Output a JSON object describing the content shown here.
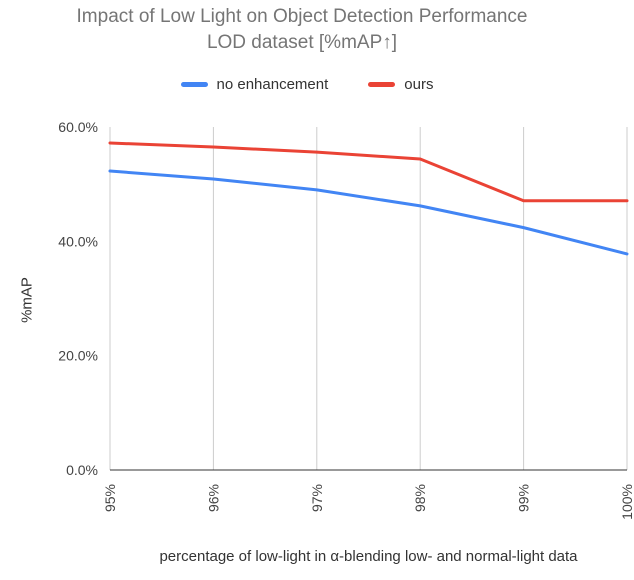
{
  "header": {
    "title_line1": "Impact of Low Light on Object Detection Performance",
    "title_line2": "LOD dataset [%mAP↑]"
  },
  "chart_data": {
    "type": "line",
    "title": "Impact of Low Light on Object Detection Performance LOD dataset [%mAP↑]",
    "xlabel": "percentage of low-light in α-blending low- and normal-light data",
    "ylabel": "%mAP",
    "x": [
      95,
      96,
      97,
      98,
      99,
      100
    ],
    "x_tick_labels": [
      "95%",
      "96%",
      "97%",
      "98%",
      "99%",
      "100%"
    ],
    "series": [
      {
        "name": "no enhancement",
        "color": "#4285f4",
        "values": [
          52.3,
          50.9,
          49.0,
          46.2,
          42.4,
          37.8
        ]
      },
      {
        "name": "ours",
        "color": "#ea4335",
        "values": [
          57.2,
          56.5,
          55.6,
          54.4,
          47.1,
          47.1
        ]
      }
    ],
    "ylim": [
      0,
      60
    ],
    "yticks": [
      0,
      20,
      40,
      60
    ],
    "ytick_labels": [
      "0.0%",
      "20.0%",
      "40.0%",
      "60.0%"
    ],
    "grid": "vertical-only",
    "grid_color": "#cccccc",
    "axis_color": "#333333",
    "tick_color": "#444444",
    "legend_position": "top"
  }
}
